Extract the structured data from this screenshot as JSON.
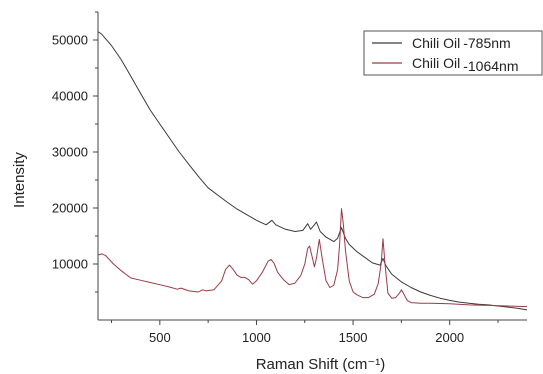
{
  "chart_data": {
    "type": "line",
    "title": "",
    "xlabel": "Raman Shift (cm⁻¹)",
    "ylabel": "Intensity",
    "xlim": [
      180,
      2400
    ],
    "ylim": [
      0,
      55000
    ],
    "x_ticks": [
      500,
      1000,
      1500,
      2000
    ],
    "y_ticks": [
      10000,
      20000,
      30000,
      40000,
      50000
    ],
    "x_tick_labels": [
      "500",
      "1000",
      "1500",
      "2000"
    ],
    "y_tick_labels": [
      "10000",
      "20000",
      "30000",
      "40000",
      "50000"
    ],
    "grid": false,
    "legend_position": "top-right",
    "series": [
      {
        "name_prefix": "Chili Oil",
        "name_suffix": "-785nm",
        "color": "#3a3a3a",
        "x": [
          180,
          200,
          250,
          300,
          350,
          400,
          450,
          500,
          550,
          600,
          650,
          700,
          750,
          800,
          850,
          900,
          950,
          1000,
          1050,
          1080,
          1100,
          1150,
          1200,
          1240,
          1265,
          1280,
          1300,
          1310,
          1330,
          1360,
          1400,
          1420,
          1440,
          1460,
          1480,
          1520,
          1560,
          1600,
          1640,
          1655,
          1670,
          1700,
          1750,
          1800,
          1850,
          1900,
          1950,
          2000,
          2050,
          2100,
          2150,
          2200,
          2250,
          2300,
          2350,
          2400
        ],
        "y": [
          51500,
          51000,
          49000,
          46500,
          43500,
          40500,
          37500,
          35000,
          32500,
          30000,
          27800,
          25600,
          23600,
          22300,
          21000,
          19800,
          18800,
          17800,
          17000,
          17800,
          17000,
          16200,
          15800,
          16000,
          17200,
          16200,
          17000,
          17500,
          15800,
          14800,
          14000,
          14600,
          16500,
          14600,
          13500,
          12200,
          11200,
          10200,
          9800,
          11000,
          9700,
          8200,
          6800,
          5800,
          5000,
          4400,
          3900,
          3500,
          3200,
          3000,
          2800,
          2700,
          2500,
          2300,
          2100,
          1800
        ]
      },
      {
        "name_prefix": "Chili Oil",
        "name_suffix": "-1064nm",
        "color": "#9a3a48",
        "x": [
          180,
          200,
          220,
          260,
          300,
          350,
          400,
          450,
          500,
          550,
          590,
          610,
          650,
          700,
          720,
          740,
          780,
          820,
          840,
          860,
          880,
          900,
          920,
          940,
          960,
          980,
          1000,
          1030,
          1060,
          1075,
          1090,
          1110,
          1140,
          1170,
          1200,
          1230,
          1250,
          1265,
          1275,
          1290,
          1300,
          1310,
          1325,
          1340,
          1360,
          1380,
          1400,
          1420,
          1430,
          1440,
          1450,
          1460,
          1480,
          1500,
          1520,
          1550,
          1580,
          1610,
          1630,
          1645,
          1655,
          1665,
          1680,
          1700,
          1720,
          1740,
          1750,
          1760,
          1780,
          1800,
          1850,
          1900,
          2000,
          2100,
          2200,
          2300,
          2400
        ],
        "y": [
          11600,
          11800,
          11500,
          10000,
          8800,
          7500,
          7100,
          6700,
          6300,
          5900,
          5500,
          5700,
          5200,
          5000,
          5400,
          5200,
          5400,
          7000,
          9000,
          9800,
          9000,
          8000,
          7600,
          7600,
          7200,
          6400,
          7000,
          8500,
          10500,
          10800,
          10200,
          8500,
          7200,
          6300,
          6600,
          8000,
          10000,
          12800,
          13200,
          11000,
          9500,
          11000,
          14400,
          11000,
          7000,
          5800,
          6200,
          9000,
          13500,
          19900,
          17000,
          12500,
          7000,
          5000,
          4500,
          4000,
          4000,
          4600,
          6500,
          10000,
          14500,
          10000,
          4800,
          3900,
          4000,
          4800,
          5400,
          4800,
          3500,
          3100,
          3000,
          3000,
          2900,
          2700,
          2600,
          2500,
          2400
        ]
      }
    ]
  }
}
